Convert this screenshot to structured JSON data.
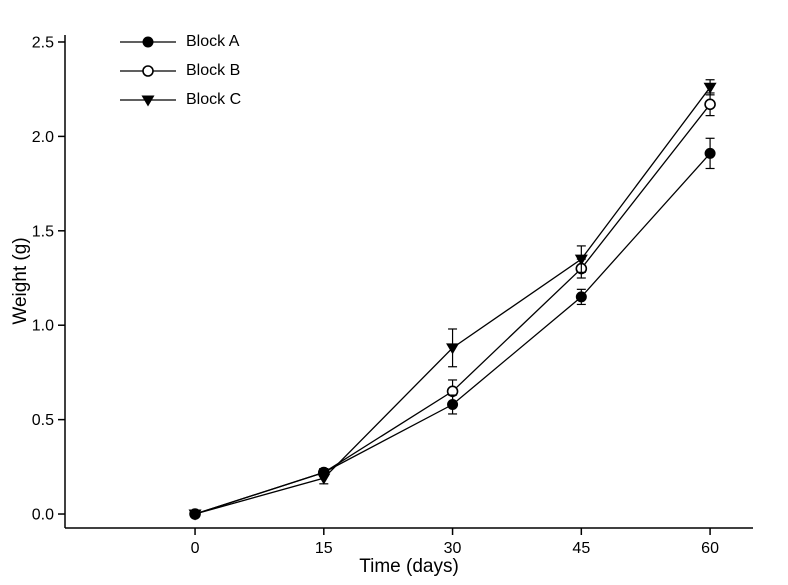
{
  "figure": {
    "background": "#ffffff",
    "foreground": "#000000"
  },
  "chart_data": {
    "type": "line",
    "title": "",
    "xlabel": "Time (days)",
    "ylabel": "Weight (g)",
    "x": [
      0,
      15,
      30,
      45,
      60
    ],
    "series": [
      {
        "name": "Block A",
        "marker": "filled-circle",
        "values": [
          0,
          0.22,
          0.58,
          1.15,
          1.91
        ],
        "errors": [
          0,
          0.02,
          0.05,
          0.04,
          0.08
        ]
      },
      {
        "name": "Block B",
        "marker": "open-circle",
        "values": [
          0,
          0.22,
          0.65,
          1.3,
          2.17
        ],
        "errors": [
          0,
          0.02,
          0.06,
          0.05,
          0.06
        ]
      },
      {
        "name": "Block C",
        "marker": "filled-triangle-down",
        "values": [
          0,
          0.19,
          0.88,
          1.35,
          2.26
        ],
        "errors": [
          0,
          0.03,
          0.1,
          0.07,
          0.04
        ]
      }
    ],
    "xticks": [
      0,
      15,
      30,
      45,
      60
    ],
    "yticks": [
      "0.0",
      "0.5",
      "1.0",
      "1.5",
      "2.0",
      "2.5"
    ],
    "xlim": [
      -15.15,
      65.0
    ],
    "ylim": [
      -0.074,
      2.537
    ],
    "grid": false,
    "legend": {
      "position": "upper-left-inside",
      "entries": [
        "Block A",
        "Block B",
        "Block C"
      ]
    },
    "colors": {
      "foreground": "#000000",
      "background": "#ffffff"
    }
  }
}
